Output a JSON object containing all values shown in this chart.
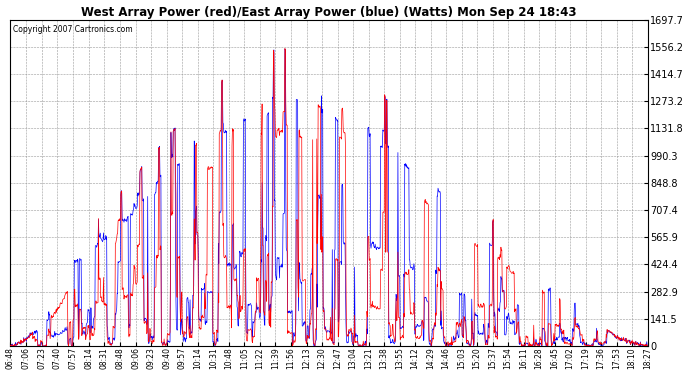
{
  "title": "West Array Power (red)/East Array Power (blue) (Watts) Mon Sep 24 18:43",
  "copyright": "Copyright 2007 Cartronics.com",
  "background_color": "#ffffff",
  "plot_bg_color": "#ffffff",
  "grid_color": "#999999",
  "red_color": "#ff0000",
  "blue_color": "#0000ff",
  "ylim": [
    0.0,
    1697.7
  ],
  "yticks": [
    0.0,
    141.5,
    282.9,
    424.4,
    565.9,
    707.4,
    848.8,
    990.3,
    1131.8,
    1273.2,
    1414.7,
    1556.2,
    1697.7
  ],
  "xtick_labels": [
    "06:48",
    "07:06",
    "07:23",
    "07:40",
    "07:57",
    "08:14",
    "08:31",
    "08:48",
    "09:06",
    "09:23",
    "09:40",
    "09:57",
    "10:14",
    "10:31",
    "10:48",
    "11:05",
    "11:22",
    "11:39",
    "11:56",
    "12:13",
    "12:30",
    "12:47",
    "13:04",
    "13:21",
    "13:38",
    "13:55",
    "14:12",
    "14:29",
    "14:46",
    "15:03",
    "15:20",
    "15:37",
    "15:54",
    "16:11",
    "16:28",
    "16:45",
    "17:02",
    "17:19",
    "17:36",
    "17:53",
    "18:10",
    "18:27"
  ],
  "figwidth": 6.9,
  "figheight": 3.75,
  "dpi": 100
}
